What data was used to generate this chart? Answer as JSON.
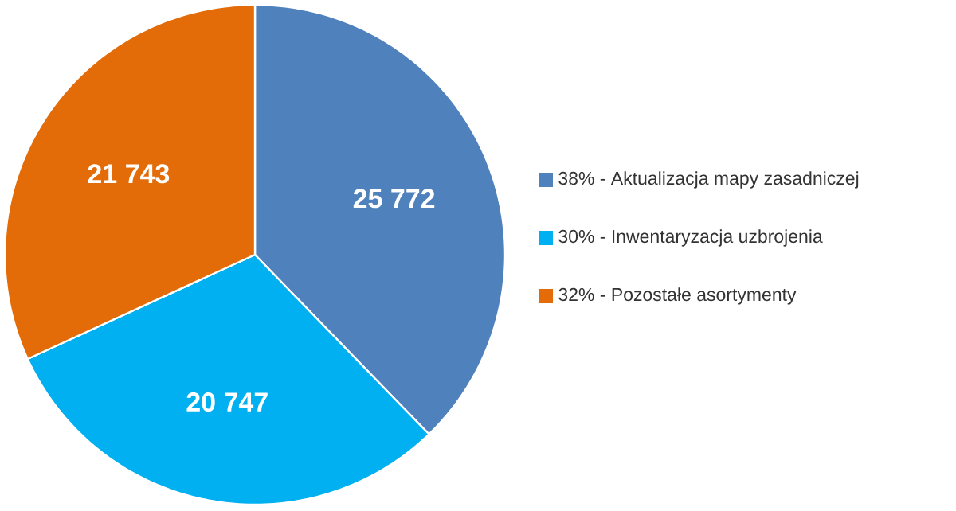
{
  "chart_data": {
    "type": "pie",
    "categories": [
      "38% - Aktualizacja mapy zasadniczej",
      "30% - Inwentaryzacja uzbrojenia",
      "32% - Pozostałe asortymenty"
    ],
    "values": [
      25772,
      20747,
      21743
    ],
    "value_labels": [
      "25 772",
      "20 747",
      "21 743"
    ],
    "colors": [
      "#4f81bd",
      "#00b0f0",
      "#e36c09"
    ],
    "legend": "right"
  }
}
